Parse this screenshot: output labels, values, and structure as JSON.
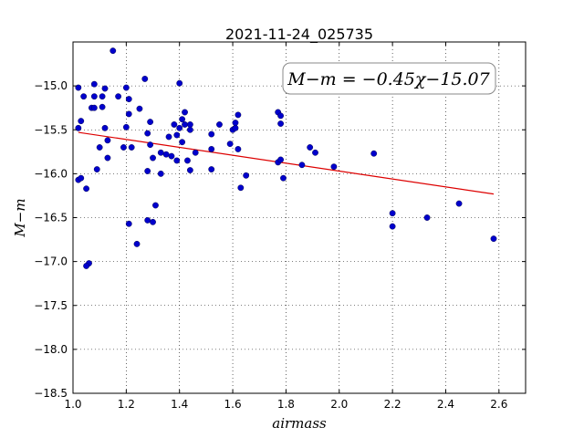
{
  "chart_data": {
    "type": "scatter",
    "title": "2021-11-24_025735",
    "xlabel": "airmass",
    "ylabel": "M−m",
    "xlim": [
      1.0,
      2.7
    ],
    "ylim": [
      -18.5,
      -14.5
    ],
    "y_inverted": true,
    "grid": true,
    "x_ticks": [
      1.0,
      1.2,
      1.4,
      1.6,
      1.8,
      2.0,
      2.2,
      2.4,
      2.6
    ],
    "x_tick_labels": [
      "1.0",
      "1.2",
      "1.4",
      "1.6",
      "1.8",
      "2.0",
      "2.2",
      "2.4",
      "2.6"
    ],
    "y_ticks": [
      -15.0,
      -15.5,
      -16.0,
      -16.5,
      -17.0,
      -17.5,
      -18.0,
      -18.5
    ],
    "y_tick_labels": [
      "−15.0",
      "−15.5",
      "−16.0",
      "−16.5",
      "−17.0",
      "−17.5",
      "−18.0",
      "−18.5"
    ],
    "annotation": "M−m = −0.45χ−15.07",
    "point_color": "#0000cc",
    "fit_color": "#dd0000",
    "fit": {
      "slope": -0.45,
      "intercept": -15.07,
      "x_range": [
        1.02,
        2.58
      ]
    },
    "points": [
      [
        1.15,
        -14.6
      ],
      [
        1.02,
        -15.02
      ],
      [
        1.04,
        -15.12
      ],
      [
        1.07,
        -15.25
      ],
      [
        1.08,
        -14.98
      ],
      [
        1.08,
        -15.12
      ],
      [
        1.11,
        -15.12
      ],
      [
        1.12,
        -15.03
      ],
      [
        1.11,
        -15.24
      ],
      [
        1.08,
        -15.25
      ],
      [
        1.03,
        -15.4
      ],
      [
        1.02,
        -15.48
      ],
      [
        1.12,
        -15.48
      ],
      [
        1.13,
        -15.62
      ],
      [
        1.1,
        -15.7
      ],
      [
        1.13,
        -15.82
      ],
      [
        1.09,
        -15.95
      ],
      [
        1.02,
        -16.07
      ],
      [
        1.03,
        -16.05
      ],
      [
        1.05,
        -16.17
      ],
      [
        1.06,
        -17.02
      ],
      [
        1.05,
        -17.05
      ],
      [
        1.17,
        -15.12
      ],
      [
        1.2,
        -15.02
      ],
      [
        1.21,
        -15.15
      ],
      [
        1.21,
        -15.32
      ],
      [
        1.2,
        -15.47
      ],
      [
        1.22,
        -15.7
      ],
      [
        1.19,
        -15.7
      ],
      [
        1.21,
        -16.57
      ],
      [
        1.24,
        -16.8
      ],
      [
        1.27,
        -14.92
      ],
      [
        1.25,
        -15.26
      ],
      [
        1.29,
        -15.41
      ],
      [
        1.28,
        -15.54
      ],
      [
        1.29,
        -15.67
      ],
      [
        1.3,
        -15.82
      ],
      [
        1.28,
        -15.97
      ],
      [
        1.28,
        -16.53
      ],
      [
        1.3,
        -16.55
      ],
      [
        1.31,
        -16.36
      ],
      [
        1.33,
        -15.76
      ],
      [
        1.33,
        -16.0
      ],
      [
        1.35,
        -15.78
      ],
      [
        1.36,
        -15.58
      ],
      [
        1.37,
        -15.8
      ],
      [
        1.38,
        -15.44
      ],
      [
        1.39,
        -15.85
      ],
      [
        1.39,
        -15.56
      ],
      [
        1.4,
        -15.48
      ],
      [
        1.4,
        -14.97
      ],
      [
        1.41,
        -15.38
      ],
      [
        1.42,
        -15.3
      ],
      [
        1.42,
        -15.44
      ],
      [
        1.41,
        -15.64
      ],
      [
        1.43,
        -15.85
      ],
      [
        1.44,
        -15.96
      ],
      [
        1.44,
        -15.44
      ],
      [
        1.44,
        -15.5
      ],
      [
        1.46,
        -15.76
      ],
      [
        1.52,
        -15.72
      ],
      [
        1.52,
        -15.55
      ],
      [
        1.52,
        -15.95
      ],
      [
        1.55,
        -15.44
      ],
      [
        1.59,
        -15.66
      ],
      [
        1.6,
        -15.5
      ],
      [
        1.61,
        -15.42
      ],
      [
        1.62,
        -15.33
      ],
      [
        1.61,
        -15.48
      ],
      [
        1.62,
        -15.72
      ],
      [
        1.63,
        -16.16
      ],
      [
        1.65,
        -16.02
      ],
      [
        1.77,
        -15.3
      ],
      [
        1.78,
        -15.34
      ],
      [
        1.78,
        -15.43
      ],
      [
        1.77,
        -15.87
      ],
      [
        1.78,
        -15.84
      ],
      [
        1.79,
        -16.05
      ],
      [
        1.86,
        -15.9
      ],
      [
        1.89,
        -15.7
      ],
      [
        1.91,
        -15.76
      ],
      [
        1.98,
        -15.92
      ],
      [
        2.13,
        -15.77
      ],
      [
        2.2,
        -16.45
      ],
      [
        2.2,
        -16.6
      ],
      [
        2.33,
        -16.5
      ],
      [
        2.45,
        -16.34
      ],
      [
        2.58,
        -16.74
      ]
    ]
  }
}
